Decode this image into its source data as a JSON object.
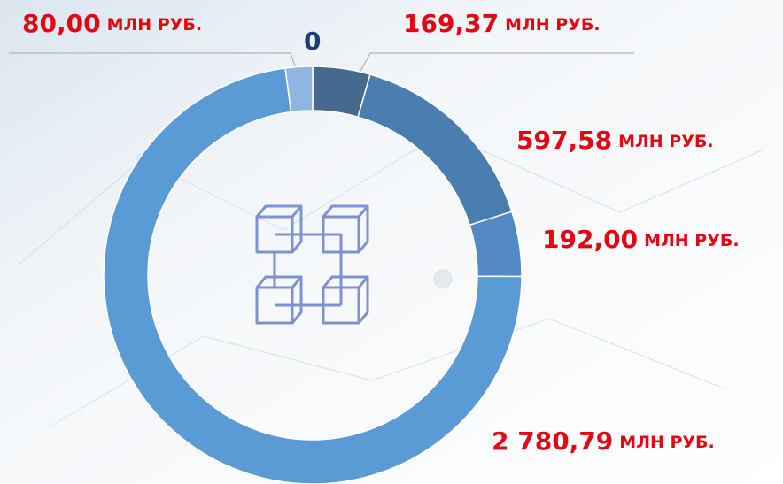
{
  "chart_data": {
    "type": "donut",
    "unit": "МЛН РУБ.",
    "values": [
      169.37,
      597.58,
      192.0,
      2780.79,
      80.0,
      0
    ],
    "value_labels": [
      "169,37",
      "597,58",
      "192,00",
      "2 780,79",
      "80,00",
      "0"
    ],
    "colors": [
      "#46698f",
      "#4a7db0",
      "#538ac6",
      "#5b9bd5",
      "#8fb5e2",
      "#9fc3ea"
    ]
  }
}
